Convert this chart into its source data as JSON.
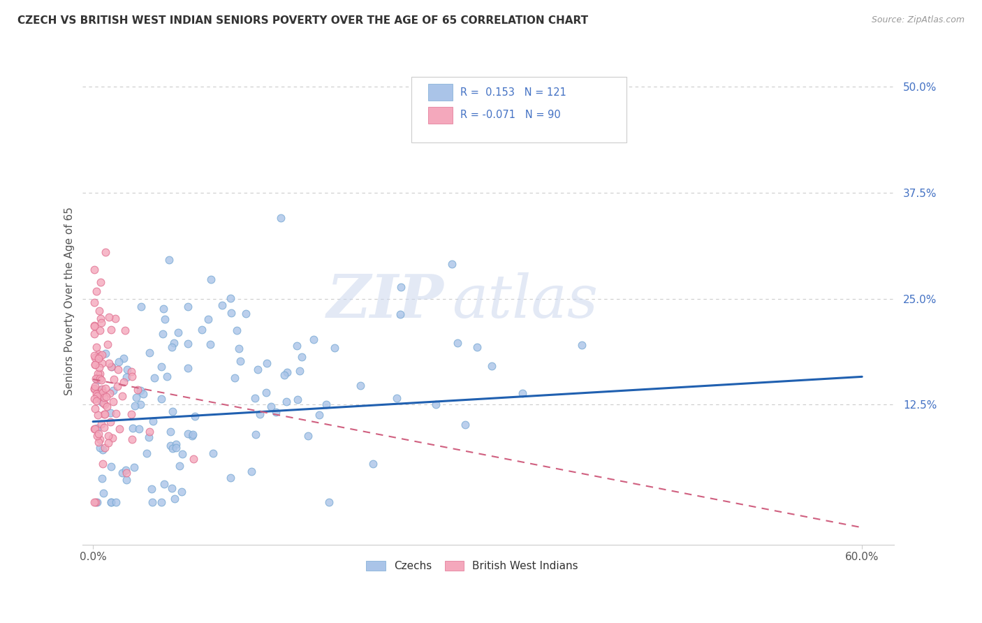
{
  "title": "CZECH VS BRITISH WEST INDIAN SENIORS POVERTY OVER THE AGE OF 65 CORRELATION CHART",
  "source": "Source: ZipAtlas.com",
  "ylabel_label": "Seniors Poverty Over the Age of 65",
  "ylabel_ticks": [
    0.0,
    0.125,
    0.25,
    0.375,
    0.5
  ],
  "ylabel_tick_labels": [
    "",
    "12.5%",
    "25.0%",
    "37.5%",
    "50.0%"
  ],
  "xlim": [
    -0.008,
    0.625
  ],
  "ylim": [
    -0.04,
    0.535
  ],
  "czech_color": "#aac4e8",
  "czech_edge_color": "#7aaad4",
  "bwi_color": "#f4a8bc",
  "bwi_edge_color": "#e07090",
  "trend_czech_color": "#2060b0",
  "trend_bwi_color": "#d06080",
  "r_czech": 0.153,
  "n_czech": 121,
  "r_bwi": -0.071,
  "n_bwi": 90,
  "legend_czech_label": "Czechs",
  "legend_bwi_label": "British West Indians",
  "watermark_zip": "ZIP",
  "watermark_atlas": "atlas",
  "grid_color": "#cccccc",
  "axis_color": "#cccccc",
  "tick_color": "#4472c4",
  "title_color": "#333333",
  "label_color": "#555555"
}
